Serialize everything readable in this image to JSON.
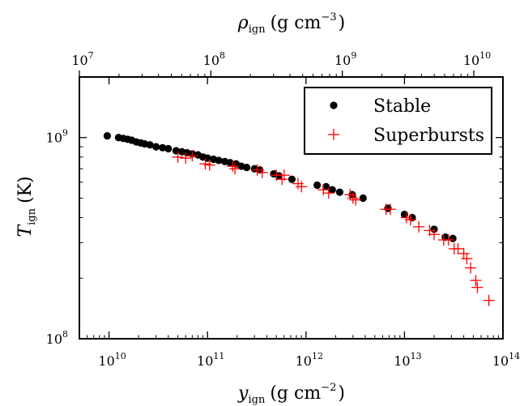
{
  "chart_data": {
    "type": "scatter",
    "xscale": "log",
    "yscale": "log",
    "x_axis": {
      "label_main": "y",
      "label_sub": "ign",
      "label_unit": "(g cm",
      "label_exp": "−2",
      "label_close": ")",
      "lim": [
        5000000000.0,
        100000000000000.0
      ],
      "ticks": [
        {
          "value": 10000000000.0,
          "base": "10",
          "exp": "10"
        },
        {
          "value": 100000000000.0,
          "base": "10",
          "exp": "11"
        },
        {
          "value": 1000000000000.0,
          "base": "10",
          "exp": "12"
        },
        {
          "value": 10000000000000.0,
          "base": "10",
          "exp": "13"
        },
        {
          "value": 100000000000000.0,
          "base": "10",
          "exp": "14"
        }
      ]
    },
    "y_axis": {
      "label_main": "T",
      "label_sub": "ign",
      "label_unit": "(K)",
      "lim": [
        100000000.0,
        2000000000.0
      ],
      "ticks": [
        {
          "value": 100000000.0,
          "base": "10",
          "exp": "8"
        },
        {
          "value": 1000000000.0,
          "base": "10",
          "exp": "9"
        }
      ]
    },
    "top_axis": {
      "label_main": "ρ",
      "label_sub": "ign",
      "label_unit": "(g cm",
      "label_exp": "−3",
      "label_close": ")",
      "ticks": [
        {
          "value": 10000000.0,
          "base": "10",
          "exp": "7"
        },
        {
          "value": 100000000.0,
          "base": "10",
          "exp": "8"
        },
        {
          "value": 1000000000.0,
          "base": "10",
          "exp": "9"
        },
        {
          "value": 10000000000.0,
          "base": "10",
          "exp": "10"
        }
      ]
    },
    "legend": {
      "position": "top-right",
      "entries": [
        {
          "label": "Stable",
          "marker": "circle",
          "color": "#000000"
        },
        {
          "label": "Superbursts",
          "marker": "plus",
          "color": "#ff0000"
        }
      ]
    },
    "series": [
      {
        "name": "Stable",
        "marker": "circle",
        "color": "#000000",
        "points": [
          [
            9600000000.0,
            1020000000.0
          ],
          [
            12500000000.0,
            1000000000.0
          ],
          [
            14000000000.0,
            990000000.0
          ],
          [
            15500000000.0,
            980000000.0
          ],
          [
            17000000000.0,
            970000000.0
          ],
          [
            19000000000.0,
            950000000.0
          ],
          [
            21000000000.0,
            940000000.0
          ],
          [
            23000000000.0,
            930000000.0
          ],
          [
            26000000000.0,
            920000000.0
          ],
          [
            30000000000.0,
            900000000.0
          ],
          [
            35000000000.0,
            890000000.0
          ],
          [
            40000000000.0,
            880000000.0
          ],
          [
            48000000000.0,
            860000000.0
          ],
          [
            55000000000.0,
            850000000.0
          ],
          [
            62000000000.0,
            840000000.0
          ],
          [
            70000000000.0,
            830000000.0
          ],
          [
            80000000000.0,
            820000000.0
          ],
          [
            90000000000.0,
            800000000.0
          ],
          [
            100000000000.0,
            790000000.0
          ],
          [
            115000000000.0,
            780000000.0
          ],
          [
            130000000000.0,
            770000000.0
          ],
          [
            150000000000.0,
            760000000.0
          ],
          [
            170000000000.0,
            750000000.0
          ],
          [
            195000000000.0,
            740000000.0
          ],
          [
            220000000000.0,
            720000000.0
          ],
          [
            250000000000.0,
            710000000.0
          ],
          [
            300000000000.0,
            700000000.0
          ],
          [
            340000000000.0,
            690000000.0
          ],
          [
            470000000000.0,
            660000000.0
          ],
          [
            530000000000.0,
            645000000.0
          ],
          [
            720000000000.0,
            620000000.0
          ],
          [
            1300000000000.0,
            580000000.0
          ],
          [
            1600000000000.0,
            570000000.0
          ],
          [
            1850000000000.0,
            550000000.0
          ],
          [
            2200000000000.0,
            535000000.0
          ],
          [
            2950000000000.0,
            520000000.0
          ],
          [
            3800000000000.0,
            500000000.0
          ],
          [
            6800000000000.0,
            445000000.0
          ],
          [
            10000000000000.0,
            415000000.0
          ],
          [
            12000000000000.0,
            400000000.0
          ],
          [
            20000000000000.0,
            350000000.0
          ],
          [
            26000000000000.0,
            320000000.0
          ],
          [
            31000000000000.0,
            315000000.0
          ]
        ]
      },
      {
        "name": "Superbursts",
        "marker": "plus",
        "color": "#ff0000",
        "points": [
          [
            50000000000.0,
            800000000.0
          ],
          [
            60000000000.0,
            790000000.0
          ],
          [
            70000000000.0,
            810000000.0
          ],
          [
            95000000000.0,
            740000000.0
          ],
          [
            105000000000.0,
            730000000.0
          ],
          [
            180000000000.0,
            720000000.0
          ],
          [
            190000000000.0,
            700000000.0
          ],
          [
            320000000000.0,
            690000000.0
          ],
          [
            360000000000.0,
            670000000.0
          ],
          [
            500000000000.0,
            650000000.0
          ],
          [
            570000000000.0,
            620000000.0
          ],
          [
            600000000000.0,
            650000000.0
          ],
          [
            830000000000.0,
            590000000.0
          ],
          [
            900000000000.0,
            570000000.0
          ],
          [
            1500000000000.0,
            550000000.0
          ],
          [
            1700000000000.0,
            530000000.0
          ],
          [
            2800000000000.0,
            520000000.0
          ],
          [
            3000000000000.0,
            500000000.0
          ],
          [
            3200000000000.0,
            490000000.0
          ],
          [
            6500000000000.0,
            440000000.0
          ],
          [
            7200000000000.0,
            440000000.0
          ],
          [
            10500000000000.0,
            400000000.0
          ],
          [
            11500000000000.0,
            390000000.0
          ],
          [
            14000000000000.0,
            360000000.0
          ],
          [
            18000000000000.0,
            345000000.0
          ],
          [
            20000000000000.0,
            330000000.0
          ],
          [
            25000000000000.0,
            310000000.0
          ],
          [
            28000000000000.0,
            310000000.0
          ],
          [
            32000000000000.0,
            280000000.0
          ],
          [
            35000000000000.0,
            280000000.0
          ],
          [
            40000000000000.0,
            265000000.0
          ],
          [
            43000000000000.0,
            250000000.0
          ],
          [
            47000000000000.0,
            225000000.0
          ],
          [
            53000000000000.0,
            195000000.0
          ],
          [
            55000000000000.0,
            180000000.0
          ],
          [
            72000000000000.0,
            155000000.0
          ]
        ]
      }
    ]
  }
}
